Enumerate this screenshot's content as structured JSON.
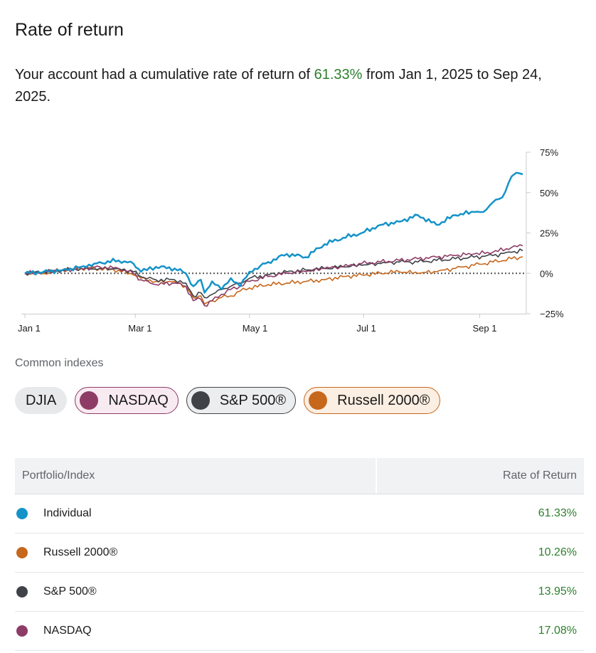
{
  "page": {
    "title": "Rate of return",
    "summary_prefix": "Your account had a cumulative rate of return of ",
    "summary_value": "61.33%",
    "summary_suffix": " from Jan 1, 2025 to Sep 24, 2025."
  },
  "chart_data": {
    "type": "line",
    "x_ticks": [
      "Jan 1",
      "Mar 1",
      "May 1",
      "Jul 1",
      "Sep 1"
    ],
    "x_tick_days": [
      0,
      59,
      120,
      181,
      243
    ],
    "x_range_days": [
      0,
      266
    ],
    "y_ticks": [
      "75%",
      "50%",
      "25%",
      "0%",
      "−25%"
    ],
    "ylim": [
      -25,
      75
    ],
    "zero_line": "dotted",
    "axis_side": "right",
    "series": [
      {
        "name": "Individual",
        "color": "#1593c8",
        "x": [
          0,
          10,
          20,
          30,
          37,
          50,
          58,
          62,
          70,
          80,
          86,
          90,
          94,
          96,
          100,
          105,
          110,
          115,
          120,
          130,
          140,
          150,
          160,
          170,
          180,
          190,
          200,
          210,
          220,
          230,
          240,
          245,
          250,
          255,
          260,
          264,
          266
        ],
        "y": [
          0,
          1,
          2,
          4,
          6,
          8,
          6,
          1,
          4,
          3,
          0,
          -8,
          -4,
          -12,
          -5,
          -10,
          -3,
          -8,
          1,
          7,
          12,
          10,
          18,
          22,
          25,
          30,
          32,
          36,
          30,
          36,
          38,
          38,
          44,
          47,
          60,
          62,
          61.33
        ]
      },
      {
        "name": "Russell 2000®",
        "color": "#c6671c",
        "x": [
          0,
          10,
          20,
          30,
          40,
          50,
          58,
          62,
          70,
          80,
          86,
          90,
          94,
          96,
          100,
          105,
          110,
          115,
          120,
          130,
          140,
          150,
          160,
          170,
          180,
          190,
          200,
          210,
          220,
          230,
          240,
          250,
          260,
          266
        ],
        "y": [
          0,
          0,
          2,
          3,
          3,
          2,
          -1,
          -3,
          -5,
          -5,
          -8,
          -15,
          -14,
          -19,
          -17,
          -15,
          -14,
          -11,
          -9,
          -7,
          -6,
          -5,
          -4,
          -2,
          -1,
          0,
          1,
          0,
          1,
          3,
          5,
          7,
          9,
          10.26
        ]
      },
      {
        "name": "S&P 500®",
        "color": "#3f4348",
        "x": [
          0,
          10,
          20,
          30,
          40,
          50,
          58,
          62,
          70,
          80,
          86,
          90,
          94,
          96,
          100,
          105,
          110,
          115,
          120,
          130,
          140,
          150,
          160,
          170,
          180,
          190,
          200,
          210,
          220,
          230,
          240,
          250,
          260,
          266
        ],
        "y": [
          0,
          1,
          2,
          3,
          3,
          3,
          1,
          -2,
          -4,
          -4,
          -6,
          -14,
          -12,
          -15,
          -13,
          -10,
          -8,
          -6,
          -3,
          -1,
          1,
          2,
          3,
          4,
          5,
          6,
          7,
          7,
          8,
          9,
          10,
          11,
          13,
          13.95
        ]
      },
      {
        "name": "NASDAQ",
        "color": "#8e3c66",
        "x": [
          0,
          10,
          20,
          30,
          40,
          50,
          58,
          62,
          70,
          80,
          86,
          90,
          94,
          96,
          100,
          105,
          110,
          115,
          120,
          130,
          140,
          150,
          160,
          170,
          180,
          190,
          200,
          210,
          220,
          230,
          240,
          250,
          260,
          266
        ],
        "y": [
          0,
          1,
          2,
          3,
          4,
          3,
          0,
          -4,
          -7,
          -6,
          -8,
          -17,
          -16,
          -20,
          -17,
          -13,
          -10,
          -8,
          -5,
          -2,
          0,
          1,
          3,
          4,
          6,
          7,
          8,
          9,
          10,
          11,
          12,
          13,
          16,
          17.08
        ]
      }
    ]
  },
  "indexes": {
    "label": "Common indexes",
    "chips": [
      {
        "label": "DJIA"
      },
      {
        "label": "NASDAQ",
        "color": "#8e3c66"
      },
      {
        "label": "S&P 500®",
        "color": "#3f4348"
      },
      {
        "label": "Russell 2000®",
        "color": "#c6671c"
      }
    ]
  },
  "table": {
    "col1": "Portfolio/Index",
    "col2": "Rate of Return",
    "rows": [
      {
        "name": "Individual",
        "value": "61.33%",
        "color": "#1593c8"
      },
      {
        "name": "Russell 2000®",
        "value": "10.26%",
        "color": "#c6671c"
      },
      {
        "name": "S&P 500®",
        "value": "13.95%",
        "color": "#3f4348"
      },
      {
        "name": "NASDAQ",
        "value": "17.08%",
        "color": "#8e3c66"
      }
    ]
  }
}
